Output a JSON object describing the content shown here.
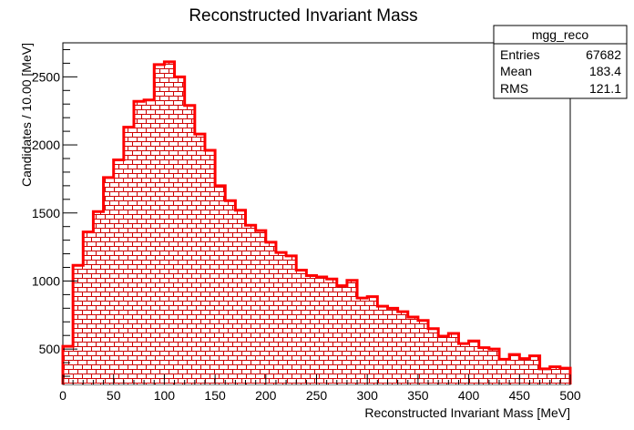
{
  "chart_data": {
    "type": "bar",
    "title": "Reconstructed Invariant Mass",
    "xlabel": "Reconstructed Invariant Mass [MeV]",
    "ylabel": "Candidates / 10.00 [MeV]",
    "xlim": [
      0,
      500
    ],
    "ylim": [
      240,
      2750
    ],
    "bin_width": 10,
    "bin_edges_start": 0,
    "values": [
      520,
      1115,
      1360,
      1510,
      1760,
      1890,
      2130,
      2320,
      2330,
      2590,
      2610,
      2500,
      2290,
      2080,
      1960,
      1700,
      1590,
      1520,
      1410,
      1370,
      1285,
      1210,
      1185,
      1080,
      1040,
      1030,
      1015,
      965,
      1005,
      875,
      885,
      815,
      800,
      775,
      735,
      710,
      650,
      595,
      615,
      540,
      560,
      510,
      500,
      425,
      460,
      430,
      450,
      355,
      370,
      360,
      345
    ],
    "xticks": [
      0,
      50,
      100,
      150,
      200,
      250,
      300,
      350,
      400,
      450,
      500
    ],
    "yticks": [
      500,
      1000,
      1500,
      2000,
      2500
    ],
    "line_color": "#ff0000",
    "fill_pattern_color": "#cc0000",
    "grid": false,
    "legend": "top-right",
    "stats_box": {
      "name": "mgg_reco",
      "rows": [
        {
          "label": "Entries",
          "value": "67682"
        },
        {
          "label": "Mean",
          "value": "183.4"
        },
        {
          "label": "RMS",
          "value": "121.1"
        }
      ]
    }
  }
}
